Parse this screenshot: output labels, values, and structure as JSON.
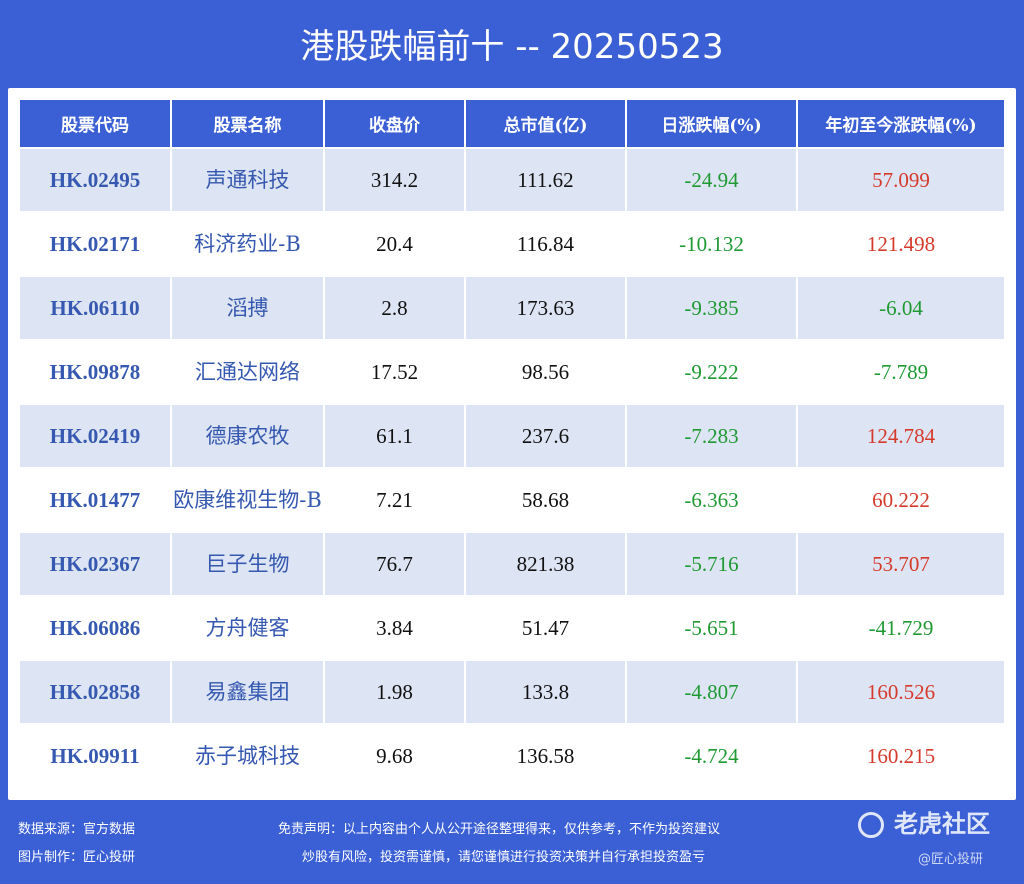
{
  "title": "港股跌幅前十 -- 20250523",
  "table": {
    "headers": [
      "股票代码",
      "股票名称",
      "收盘价",
      "总市值(亿)",
      "日涨跌幅(%)",
      "年初至今涨跌幅(%)"
    ],
    "rows": [
      {
        "code": "HK.02495",
        "name": "声通科技",
        "close": "314.2",
        "cap": "111.62",
        "day": "-24.94",
        "ytd": "57.099"
      },
      {
        "code": "HK.02171",
        "name": "科济药业-B",
        "close": "20.4",
        "cap": "116.84",
        "day": "-10.132",
        "ytd": "121.498"
      },
      {
        "code": "HK.06110",
        "name": "滔搏",
        "close": "2.8",
        "cap": "173.63",
        "day": "-9.385",
        "ytd": "-6.04"
      },
      {
        "code": "HK.09878",
        "name": "汇通达网络",
        "close": "17.52",
        "cap": "98.56",
        "day": "-9.222",
        "ytd": "-7.789"
      },
      {
        "code": "HK.02419",
        "name": "德康农牧",
        "close": "61.1",
        "cap": "237.6",
        "day": "-7.283",
        "ytd": "124.784"
      },
      {
        "code": "HK.01477",
        "name": "欧康维视生物-B",
        "close": "7.21",
        "cap": "58.68",
        "day": "-6.363",
        "ytd": "60.222"
      },
      {
        "code": "HK.02367",
        "name": "巨子生物",
        "close": "76.7",
        "cap": "821.38",
        "day": "-5.716",
        "ytd": "53.707"
      },
      {
        "code": "HK.06086",
        "name": "方舟健客",
        "close": "3.84",
        "cap": "51.47",
        "day": "-5.651",
        "ytd": "-41.729"
      },
      {
        "code": "HK.02858",
        "name": "易鑫集团",
        "close": "1.98",
        "cap": "133.8",
        "day": "-4.807",
        "ytd": "160.526"
      },
      {
        "code": "HK.09911",
        "name": "赤子城科技",
        "close": "9.68",
        "cap": "136.58",
        "day": "-4.724",
        "ytd": "160.215"
      }
    ]
  },
  "footer": {
    "source": "数据来源：官方数据",
    "maker": "图片制作：匠心投研",
    "disclaimer1": "免责声明：以上内容由个人从公开途径整理得来，仅供参考，不作为投资建议",
    "disclaimer2": "炒股有风险，投资需谨慎，请您谨慎进行投资决策并自行承担投资盈亏",
    "logo": "老虎社区",
    "watermark": "@匠心投研"
  },
  "colors": {
    "positive": "#d63a2b",
    "negative": "#1f9a33",
    "header": "#3b5fd4"
  }
}
